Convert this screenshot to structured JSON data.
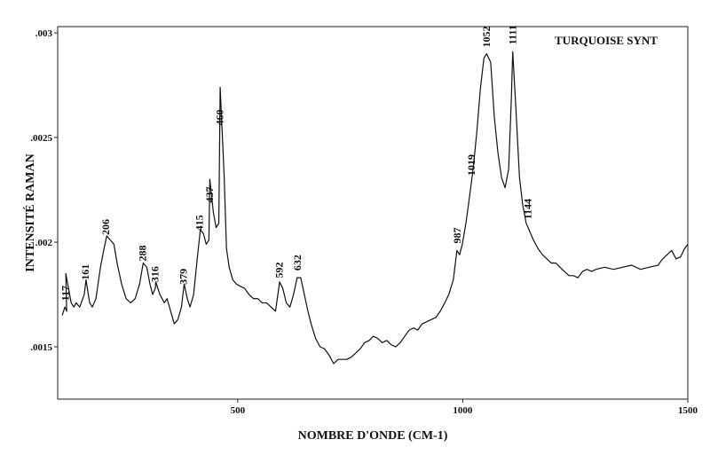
{
  "chart_data": {
    "type": "line",
    "title": "TURQUOISE SYNT",
    "x_label": "NOMBRE D'ONDE (CM-1)",
    "y_label": "INTENSITÉ RAMAN",
    "color": "#111111",
    "x": [
      110,
      116,
      120,
      118,
      130,
      136,
      141,
      149,
      159,
      163,
      171,
      177,
      185,
      195,
      203,
      209,
      217,
      225,
      232,
      242,
      252,
      262,
      272,
      282,
      290,
      298,
      305,
      311,
      317,
      318,
      327,
      337,
      343,
      351,
      359,
      367,
      375,
      381,
      388,
      394,
      402,
      410,
      417,
      424,
      430,
      436,
      438,
      446,
      452,
      458,
      461,
      470,
      475,
      481,
      489,
      497,
      505,
      515,
      525,
      535,
      545,
      554,
      564,
      574,
      584,
      593,
      600,
      608,
      616,
      624,
      632,
      640,
      648,
      656,
      663,
      673,
      683,
      693,
      703,
      713,
      723,
      733,
      742,
      752,
      762,
      772,
      782,
      792,
      801,
      811,
      821,
      831,
      841,
      851,
      861,
      871,
      881,
      891,
      900,
      910,
      920,
      930,
      940,
      950,
      960,
      969,
      979,
      987,
      993,
      999,
      1007,
      1017,
      1023,
      1031,
      1039,
      1047,
      1053,
      1062,
      1070,
      1078,
      1086,
      1094,
      1102,
      1108,
      1111,
      1118,
      1126,
      1133,
      1141,
      1149,
      1157,
      1167,
      1177,
      1187,
      1197,
      1207,
      1216,
      1226,
      1236,
      1246,
      1256,
      1266,
      1276,
      1286,
      1296,
      1315,
      1335,
      1355,
      1375,
      1395,
      1414,
      1434,
      1444,
      1454,
      1464,
      1474,
      1484,
      1493,
      1500
    ],
    "values": [
      0.00165,
      0.00169,
      0.00167,
      0.00185,
      0.00171,
      0.00169,
      0.00171,
      0.00169,
      0.00175,
      0.00182,
      0.00171,
      0.00169,
      0.00173,
      0.00188,
      0.00197,
      0.00203,
      0.00201,
      0.00199,
      0.0019,
      0.0018,
      0.00173,
      0.00171,
      0.00173,
      0.0018,
      0.0019,
      0.00188,
      0.0018,
      0.00175,
      0.00178,
      0.00181,
      0.00175,
      0.00171,
      0.00173,
      0.00167,
      0.00161,
      0.00163,
      0.00169,
      0.0018,
      0.00173,
      0.00169,
      0.00175,
      0.00192,
      0.00206,
      0.00204,
      0.00199,
      0.00201,
      0.0023,
      0.00214,
      0.00207,
      0.00209,
      0.00274,
      0.00231,
      0.00197,
      0.00188,
      0.00182,
      0.0018,
      0.00179,
      0.00178,
      0.00175,
      0.00173,
      0.00173,
      0.00171,
      0.00171,
      0.00169,
      0.00167,
      0.00181,
      0.00178,
      0.00171,
      0.00169,
      0.00175,
      0.00183,
      0.00183,
      0.00175,
      0.00167,
      0.00161,
      0.00154,
      0.0015,
      0.00149,
      0.00146,
      0.00142,
      0.00144,
      0.00144,
      0.00144,
      0.00145,
      0.00147,
      0.00149,
      0.00152,
      0.00153,
      0.00155,
      0.00154,
      0.00152,
      0.00153,
      0.00151,
      0.0015,
      0.00152,
      0.00155,
      0.00158,
      0.00159,
      0.00158,
      0.00161,
      0.00162,
      0.00163,
      0.00164,
      0.00167,
      0.00171,
      0.00175,
      0.00182,
      0.00196,
      0.00194,
      0.00199,
      0.00209,
      0.00225,
      0.00235,
      0.00252,
      0.00273,
      0.00288,
      0.0029,
      0.00286,
      0.0026,
      0.00243,
      0.00231,
      0.00226,
      0.00235,
      0.00269,
      0.00291,
      0.00264,
      0.00231,
      0.00218,
      0.00209,
      0.00205,
      0.00201,
      0.00197,
      0.00194,
      0.00192,
      0.0019,
      0.0019,
      0.00188,
      0.00186,
      0.00184,
      0.00184,
      0.00183,
      0.00186,
      0.00187,
      0.00186,
      0.00187,
      0.00188,
      0.00187,
      0.00188,
      0.00189,
      0.00187,
      0.00188,
      0.00189,
      0.00192,
      0.00194,
      0.00196,
      0.00192,
      0.00193,
      0.00197,
      0.00199
    ],
    "peak_labels": [
      117,
      161,
      206,
      288,
      316,
      379,
      415,
      437,
      460,
      592,
      632,
      987,
      1019,
      1052,
      1111,
      1144
    ],
    "xlim": [
      100,
      1500
    ],
    "xticks": [
      500,
      1000,
      1500
    ],
    "ylim": [
      0.00125,
      0.00303
    ],
    "yticks": [
      {
        "value": 0.0015,
        "label": ".0015"
      },
      {
        "value": 0.002,
        "label": ".002"
      },
      {
        "value": 0.0025,
        "label": ".0025"
      },
      {
        "value": 0.003,
        "label": ".003"
      }
    ]
  }
}
